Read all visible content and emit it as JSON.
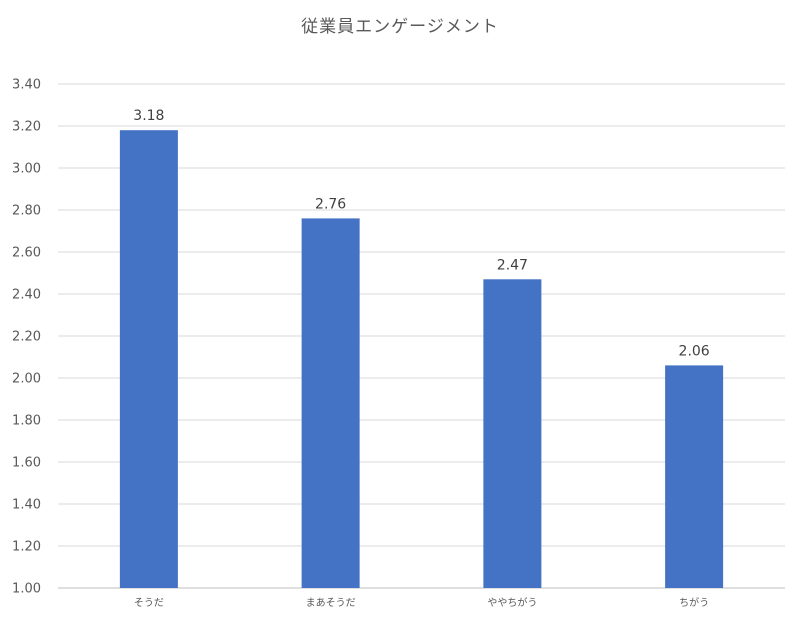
{
  "chart_data": {
    "type": "bar",
    "title": "従業員エンゲージメント",
    "xlabel": "",
    "ylabel": "",
    "categories": [
      "そうだ",
      "まあそうだ",
      "ややちがう",
      "ちがう"
    ],
    "values": [
      3.18,
      2.76,
      2.47,
      2.06
    ],
    "data_labels": [
      "3.18",
      "2.76",
      "2.47",
      "2.06"
    ],
    "ylim": [
      1.0,
      3.4
    ],
    "yticks": [
      "1.00",
      "1.20",
      "1.40",
      "1.60",
      "1.80",
      "2.00",
      "2.20",
      "2.40",
      "2.60",
      "2.80",
      "3.00",
      "3.20",
      "3.40"
    ],
    "grid": true,
    "legend": "none",
    "colors": {
      "bar": "#4472C4",
      "grid": "#D9D9D9",
      "axis": "#BFBFBF"
    }
  }
}
